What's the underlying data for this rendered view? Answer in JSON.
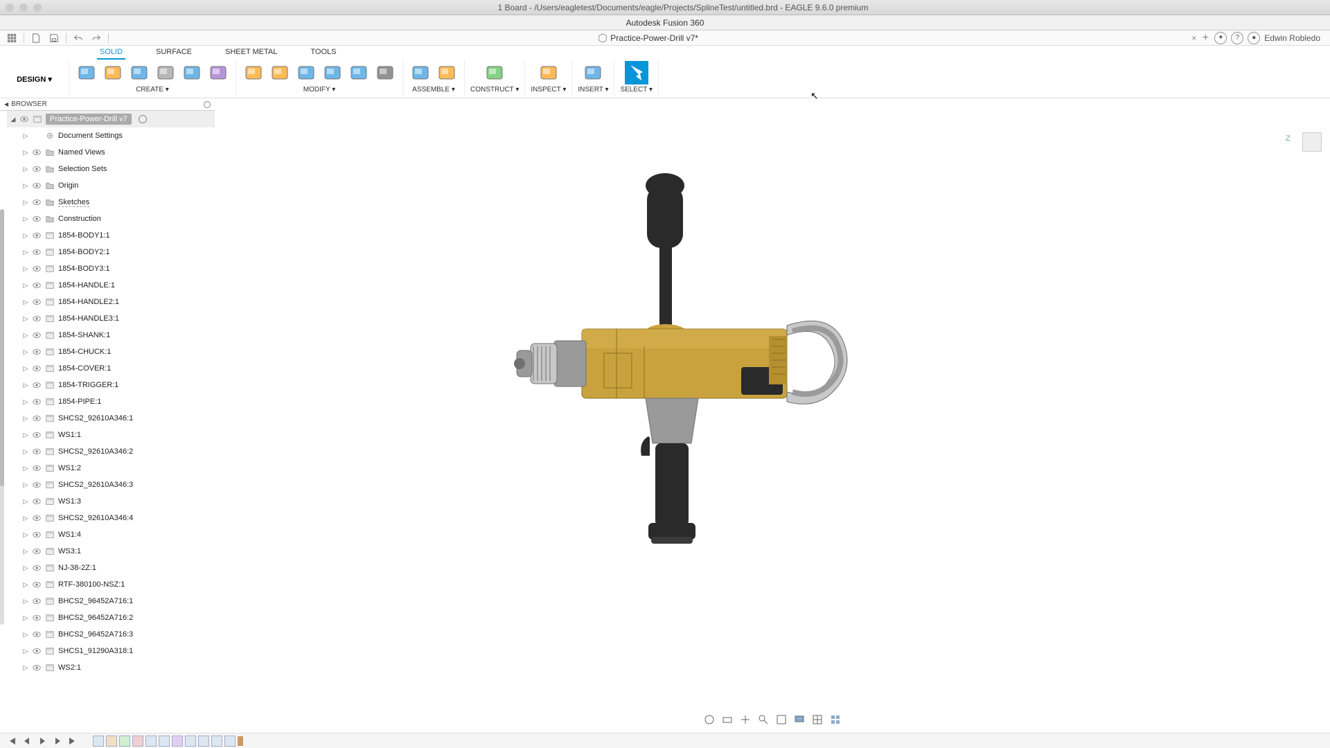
{
  "window": {
    "boardTitle": "1 Board - /Users/eagletest/Documents/eagle/Projects/SplineTest/untitled.brd - EAGLE 9.6.0 premium",
    "appTitle": "Autodesk Fusion 360",
    "tabName": "Practice-Power-Drill v7*",
    "userName": "Edwin Robledo"
  },
  "ribbonTabs": [
    "SOLID",
    "SURFACE",
    "SHEET METAL",
    "TOOLS"
  ],
  "activeRibbonTab": 0,
  "designLabel": "DESIGN ▾",
  "ribbonGroups": [
    {
      "label": "CREATE ▾",
      "colors": [
        "#5fb0e6",
        "#ffb347",
        "#5fb0e6",
        "#b0b0b0",
        "#5fb0e6",
        "#b089d6"
      ]
    },
    {
      "label": "MODIFY ▾",
      "colors": [
        "#ffb347",
        "#ffb347",
        "#5fb0e6",
        "#5fb0e6",
        "#5fb0e6",
        "#888"
      ]
    },
    {
      "label": "ASSEMBLE ▾",
      "colors": [
        "#5fb0e6",
        "#ffb347"
      ]
    },
    {
      "label": "CONSTRUCT ▾",
      "colors": [
        "#77cc77"
      ]
    },
    {
      "label": "INSPECT ▾",
      "colors": [
        "#ffb347"
      ]
    },
    {
      "label": "INSERT ▾",
      "colors": [
        "#5fb0e6"
      ]
    },
    {
      "label": "SELECT ▾",
      "colors": [
        "#0696d7"
      ],
      "selected": true
    }
  ],
  "browser": {
    "title": "BROWSER",
    "root": "Practice-Power-Drill v7",
    "folders": [
      "Document Settings",
      "Named Views",
      "Selection Sets",
      "Origin",
      "Sketches",
      "Construction"
    ],
    "components": [
      "1854-BODY1:1",
      "1854-BODY2:1",
      "1854-BODY3:1",
      "1854-HANDLE:1",
      "1854-HANDLE2:1",
      "1854-HANDLE3:1",
      "1854-SHANK:1",
      "1854-CHUCK:1",
      "1854-COVER:1",
      "1854-TRIGGER:1",
      "1854-PIPE:1",
      "SHCS2_92610A346:1",
      "WS1:1",
      "SHCS2_92610A346:2",
      "WS1:2",
      "SHCS2_92610A346:3",
      "WS1:3",
      "SHCS2_92610A346:4",
      "WS1:4",
      "WS3:1",
      "NJ-38-2Z:1",
      "RTF-380100-NSZ:1",
      "BHCS2_96452A716:1",
      "BHCS2_96452A716:2",
      "BHCS2_96452A716:3",
      "SHCS1_91290A318:1",
      "WS2:1"
    ]
  },
  "drill": {
    "bodyColor": "#c9a23e",
    "bodyShade": "#b58f30",
    "metalLight": "#c8c8c8",
    "metalMid": "#9a9a9a",
    "metalDark": "#707070",
    "black": "#2a2a2a",
    "blackLight": "#3a3a3a"
  }
}
